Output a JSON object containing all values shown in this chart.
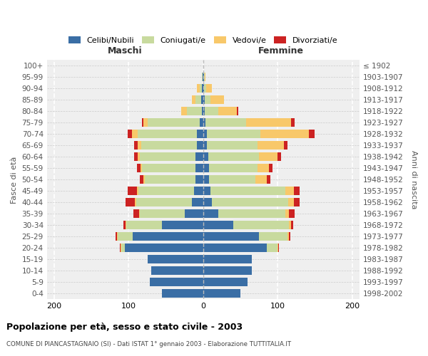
{
  "age_groups": [
    "100+",
    "95-99",
    "90-94",
    "85-89",
    "80-84",
    "75-79",
    "70-74",
    "65-69",
    "60-64",
    "55-59",
    "50-54",
    "45-49",
    "40-44",
    "35-39",
    "30-34",
    "25-29",
    "20-24",
    "15-19",
    "10-14",
    "5-9",
    "0-4"
  ],
  "birth_years": [
    "≤ 1902",
    "1903-1907",
    "1908-1912",
    "1913-1917",
    "1918-1922",
    "1923-1927",
    "1928-1932",
    "1933-1937",
    "1938-1942",
    "1943-1947",
    "1948-1952",
    "1953-1957",
    "1958-1962",
    "1963-1967",
    "1968-1972",
    "1973-1977",
    "1978-1982",
    "1983-1987",
    "1988-1992",
    "1993-1997",
    "1998-2002"
  ],
  "maschi": {
    "celibe": [
      0,
      1,
      2,
      3,
      2,
      5,
      8,
      8,
      10,
      10,
      10,
      12,
      15,
      25,
      55,
      95,
      105,
      75,
      70,
      72,
      55
    ],
    "coniugato": [
      0,
      1,
      3,
      7,
      20,
      70,
      80,
      75,
      75,
      72,
      68,
      75,
      75,
      60,
      48,
      20,
      5,
      0,
      0,
      0,
      0
    ],
    "vedovo": [
      0,
      0,
      3,
      5,
      8,
      5,
      8,
      5,
      3,
      2,
      2,
      2,
      2,
      1,
      1,
      1,
      1,
      0,
      0,
      0,
      0
    ],
    "divorziato": [
      0,
      0,
      0,
      0,
      0,
      2,
      5,
      5,
      5,
      5,
      5,
      12,
      12,
      8,
      3,
      2,
      1,
      0,
      0,
      0,
      0
    ]
  },
  "femmine": {
    "celibe": [
      0,
      1,
      1,
      2,
      2,
      3,
      5,
      5,
      7,
      8,
      8,
      10,
      12,
      20,
      40,
      75,
      85,
      65,
      65,
      60,
      50
    ],
    "coniugata": [
      0,
      1,
      3,
      8,
      18,
      55,
      72,
      68,
      68,
      65,
      62,
      100,
      102,
      90,
      75,
      38,
      15,
      0,
      0,
      0,
      0
    ],
    "vedova": [
      0,
      1,
      8,
      18,
      25,
      60,
      65,
      35,
      25,
      15,
      15,
      12,
      8,
      5,
      3,
      2,
      1,
      0,
      0,
      0,
      0
    ],
    "divorziata": [
      0,
      0,
      0,
      0,
      2,
      5,
      8,
      5,
      5,
      5,
      5,
      8,
      8,
      8,
      3,
      2,
      1,
      0,
      0,
      0,
      0
    ]
  },
  "colors": {
    "celibe": "#3A6EA5",
    "coniugato": "#C8DA9E",
    "vedovo": "#F8C86A",
    "divorziato": "#CC2222"
  },
  "xlim": 210,
  "title": "Popolazione per età, sesso e stato civile - 2003",
  "subtitle": "COMUNE DI PIANCASTAGNAIO (SI) - Dati ISTAT 1° gennaio 2003 - Elaborazione TUTTITALIA.IT",
  "xlabel_left": "Maschi",
  "xlabel_right": "Femmine",
  "ylabel_left": "Fasce di età",
  "ylabel_right": "Anni di nascita",
  "legend_labels": [
    "Celibi/Nubili",
    "Coniugati/e",
    "Vedovi/e",
    "Divorziati/e"
  ]
}
